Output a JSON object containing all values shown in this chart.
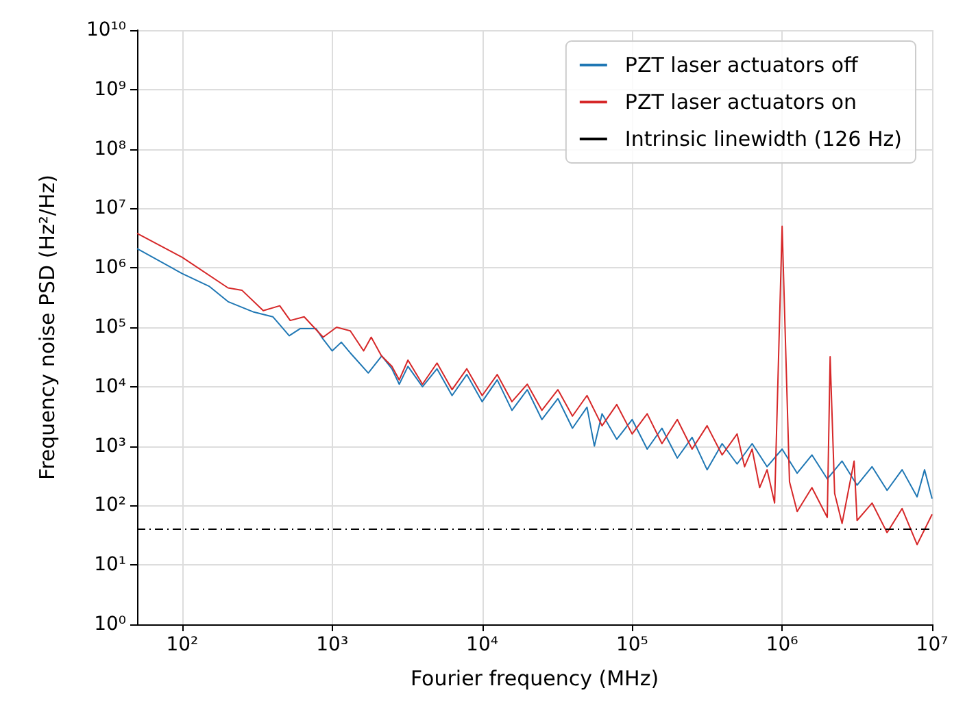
{
  "chart_data": {
    "type": "line",
    "xlabel": "Fourier frequency (MHz)",
    "ylabel": "Frequency noise PSD (Hz²/Hz)",
    "log": "xy",
    "grid": true,
    "legend": "top right",
    "line_style": "solid",
    "marker": "none",
    "xlim": [
      50,
      10000000
    ],
    "ylim": [
      1,
      10000000000
    ],
    "xticks": [
      {
        "value": 100,
        "label": "10²"
      },
      {
        "value": 1000,
        "label": "10³"
      },
      {
        "value": 10000,
        "label": "10⁴"
      },
      {
        "value": 100000,
        "label": "10⁵"
      },
      {
        "value": 1000000,
        "label": "10⁶"
      },
      {
        "value": 10000000,
        "label": "10⁷"
      }
    ],
    "yticks": [
      {
        "value": 1,
        "label": "10⁰"
      },
      {
        "value": 10,
        "label": "10¹"
      },
      {
        "value": 100,
        "label": "10²"
      },
      {
        "value": 1000,
        "label": "10³"
      },
      {
        "value": 10000,
        "label": "10⁴"
      },
      {
        "value": 100000,
        "label": "10⁵"
      },
      {
        "value": 1000000,
        "label": "10⁶"
      },
      {
        "value": 10000000,
        "label": "10⁷"
      },
      {
        "value": 100000000,
        "label": "10⁸"
      },
      {
        "value": 1000000000,
        "label": "10⁹"
      },
      {
        "value": 10000000000,
        "label": "10¹⁰"
      }
    ],
    "series": [
      {
        "name": "PZT laser actuators off",
        "color": "#1f77b4",
        "x": [
          50,
          100,
          151,
          202,
          300,
          402,
          517,
          613,
          780,
          870,
          1000,
          1150,
          1320,
          1740,
          2140,
          2500,
          2800,
          3200,
          4000,
          5000,
          6300,
          7900,
          10000,
          12600,
          15800,
          20000,
          25000,
          32000,
          40000,
          50000,
          56000,
          63000,
          79000,
          100000,
          126000,
          158000,
          200000,
          251000,
          316000,
          398000,
          501000,
          631000,
          794000,
          1000000,
          1260000,
          1580000,
          2000000,
          2510000,
          3160000,
          3980000,
          5010000,
          6310000,
          7940000,
          8910000,
          10000000
        ],
        "values": [
          2100000,
          800000,
          490000,
          270000,
          180000,
          150000,
          72000,
          95000,
          95000,
          63000,
          40000,
          56000,
          37000,
          17000,
          33000,
          20000,
          11000,
          22000,
          10000,
          20000,
          7100,
          16000,
          5600,
          13000,
          4000,
          8900,
          2800,
          6300,
          2000,
          4500,
          1000,
          3500,
          1300,
          2800,
          890,
          2000,
          630,
          1400,
          400,
          1100,
          500,
          1100,
          450,
          890,
          350,
          710,
          280,
          560,
          220,
          450,
          180,
          400,
          140,
          400,
          130
        ]
      },
      {
        "name": "PZT laser actuators on",
        "color": "#d62728",
        "x": [
          50,
          100,
          202,
          250,
          347,
          447,
          525,
          650,
          870,
          1070,
          1320,
          1620,
          1820,
          2130,
          2500,
          2800,
          3200,
          4000,
          5000,
          6300,
          7900,
          10000,
          12600,
          15800,
          20000,
          25000,
          32000,
          40000,
          50000,
          63000,
          79000,
          100000,
          126000,
          158000,
          200000,
          251000,
          316000,
          398000,
          501000,
          562000,
          631000,
          708000,
          794000,
          891000,
          1000000,
          1120000,
          1260000,
          1580000,
          2000000,
          2090000,
          2240000,
          2510000,
          3020000,
          3160000,
          3980000,
          5010000,
          6310000,
          7940000,
          10000000
        ],
        "values": [
          3800000,
          1500000,
          460000,
          420000,
          190000,
          230000,
          130000,
          150000,
          68000,
          100000,
          87000,
          40000,
          68000,
          33000,
          22000,
          13000,
          28000,
          11000,
          25000,
          8900,
          20000,
          7100,
          16000,
          5600,
          11000,
          4000,
          8900,
          3200,
          7100,
          2200,
          5000,
          1600,
          3500,
          1100,
          2800,
          890,
          2200,
          710,
          1600,
          450,
          890,
          200,
          400,
          110,
          5000000,
          250,
          79,
          200,
          63,
          32000,
          160,
          50,
          560,
          56,
          110,
          35,
          89,
          22,
          71
        ]
      }
    ],
    "ref_lines": [
      {
        "axis": "y",
        "value": 40,
        "label": "Intrinsic linewidth (126 Hz)",
        "color": "#000000",
        "line_style": "dashed"
      }
    ]
  }
}
